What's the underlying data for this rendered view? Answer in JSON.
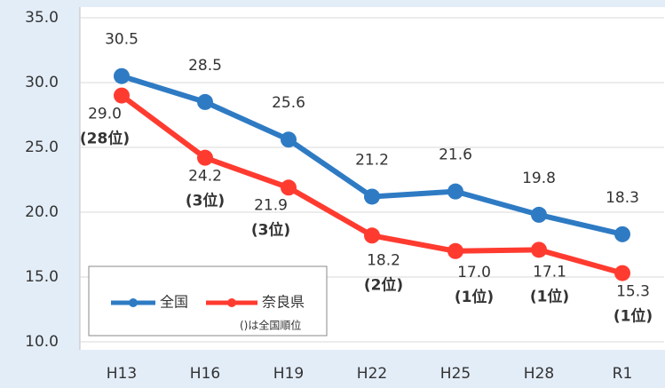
{
  "chart_data": {
    "type": "line",
    "categories": [
      "H13",
      "H16",
      "H19",
      "H22",
      "H25",
      "H28",
      "R1"
    ],
    "series": [
      {
        "name": "全国",
        "color": "#2e7bc4",
        "values": [
          30.5,
          28.5,
          25.6,
          21.2,
          21.6,
          19.8,
          18.3
        ],
        "value_labels": [
          "30.5",
          "28.5",
          "25.6",
          "21.2",
          "21.6",
          "19.8",
          "18.3"
        ]
      },
      {
        "name": "奈良県",
        "color": "#ff3b30",
        "values": [
          29.0,
          24.2,
          21.9,
          18.2,
          17.0,
          17.1,
          15.3
        ],
        "value_labels": [
          "29.0",
          "24.2",
          "21.9",
          "18.2",
          "17.0",
          "17.1",
          "15.3"
        ],
        "rank_labels": [
          "(28位)",
          "(3位)",
          "(3位)",
          "(2位)",
          "(1位)",
          "(1位)",
          "(1位)"
        ]
      }
    ],
    "legend_note": "()は全国順位",
    "ylim": [
      10,
      35
    ],
    "yticks": [
      {
        "value": 10,
        "label": "10.0"
      },
      {
        "value": 15,
        "label": "15.0"
      },
      {
        "value": 20,
        "label": "20.0"
      },
      {
        "value": 25,
        "label": "25.0"
      },
      {
        "value": 30,
        "label": "30.0"
      },
      {
        "value": 35,
        "label": "35.0"
      }
    ],
    "grid": true
  }
}
